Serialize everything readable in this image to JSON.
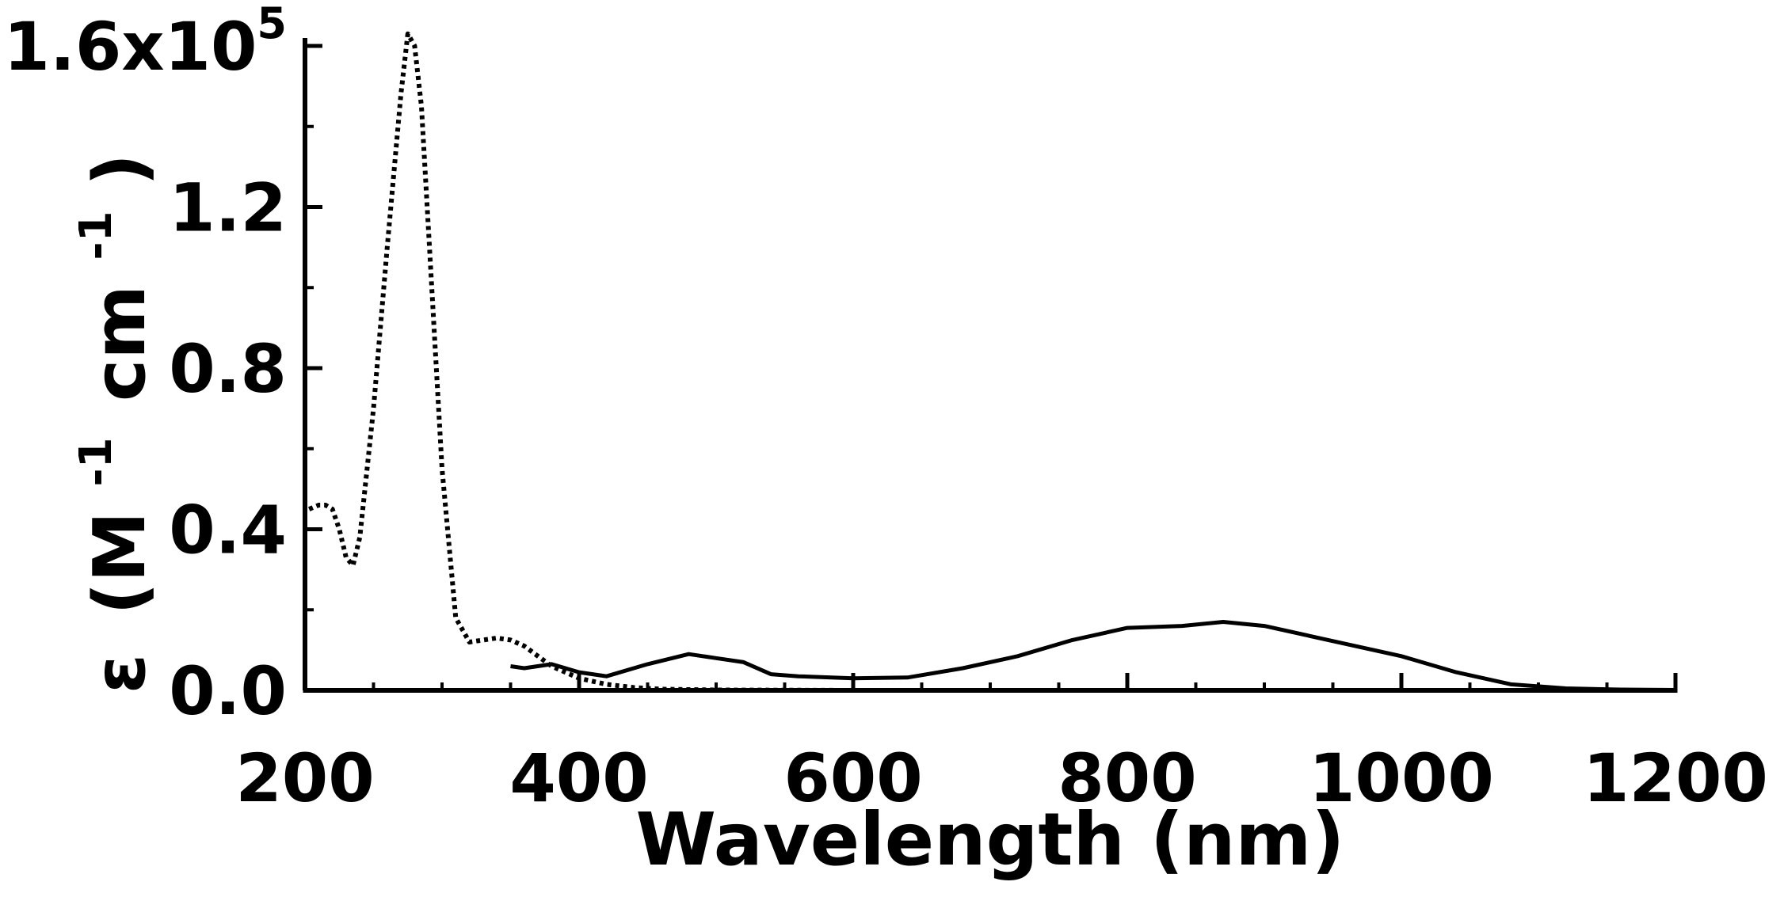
{
  "chart_data": {
    "type": "line",
    "xlabel": "Wavelength (nm)",
    "ylabel": {
      "epsilon": "ε",
      "open": "(M",
      "sup1": "-1",
      "mid": "cm",
      "sup2": "-1",
      "close": ")"
    },
    "xlim": [
      200,
      1200
    ],
    "ylim": [
      0,
      160000
    ],
    "x_ticks": [
      {
        "value": 200,
        "label": "200"
      },
      {
        "value": 400,
        "label": "400"
      },
      {
        "value": 600,
        "label": "600"
      },
      {
        "value": 800,
        "label": "800"
      },
      {
        "value": 1000,
        "label": "1000"
      },
      {
        "value": 1200,
        "label": "1200"
      }
    ],
    "y_ticks": [
      {
        "value": 0,
        "label": "0.0"
      },
      {
        "value": 40000,
        "label": "0.4"
      },
      {
        "value": 80000,
        "label": "0.8"
      },
      {
        "value": 120000,
        "label": "1.2"
      },
      {
        "value": 160000,
        "label": "1.6x10",
        "sup": "5"
      }
    ],
    "grid": false,
    "series": [
      {
        "style": "dotted",
        "color": "#000000",
        "x": [
          203,
          210,
          215,
          220,
          225,
          230,
          235,
          240,
          250,
          260,
          270,
          275,
          280,
          285,
          290,
          300,
          310,
          320,
          330,
          340,
          350,
          360,
          370,
          380,
          400,
          420,
          440,
          460,
          500,
          600,
          700,
          800,
          900,
          1000,
          1100,
          1200
        ],
        "y": [
          45000,
          46000,
          46000,
          45000,
          40000,
          33000,
          31000,
          38000,
          70000,
          110000,
          148000,
          163000,
          160000,
          145000,
          115000,
          55000,
          18000,
          12000,
          12500,
          13000,
          12500,
          11000,
          8500,
          6000,
          3000,
          1500,
          700,
          300,
          100,
          0,
          0,
          0,
          0,
          0,
          0,
          0
        ]
      },
      {
        "style": "solid",
        "color": "#000000",
        "x": [
          350,
          360,
          380,
          400,
          420,
          450,
          480,
          500,
          520,
          540,
          560,
          600,
          640,
          680,
          720,
          760,
          800,
          840,
          870,
          900,
          940,
          1000,
          1040,
          1080,
          1120,
          1160,
          1200
        ],
        "y": [
          6000,
          5500,
          6500,
          4500,
          3500,
          6500,
          9000,
          8000,
          7000,
          4000,
          3500,
          3000,
          3200,
          5500,
          8500,
          12500,
          15500,
          16000,
          17000,
          16000,
          13000,
          8500,
          4500,
          1500,
          500,
          200,
          100
        ]
      }
    ]
  }
}
